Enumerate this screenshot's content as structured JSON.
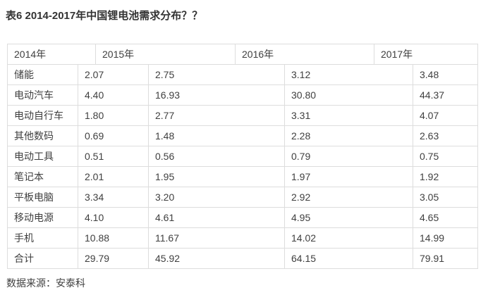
{
  "page": {
    "title": "表6 2014-2017年中国锂电池需求分布？？",
    "source_note": "数据来源：安泰科"
  },
  "table": {
    "columns": [
      "2014年",
      "2015年",
      "2016年",
      "2017年"
    ],
    "rows": [
      {
        "label": "储能",
        "values": [
          "2.07",
          "2.75",
          "3.12",
          "3.48"
        ]
      },
      {
        "label": "电动汽车",
        "values": [
          "4.40",
          "16.93",
          "30.80",
          "44.37"
        ]
      },
      {
        "label": "电动自行车",
        "values": [
          "1.80",
          "2.77",
          "3.31",
          "4.07"
        ]
      },
      {
        "label": "其他数码",
        "values": [
          "0.69",
          "1.48",
          "2.28",
          "2.63"
        ]
      },
      {
        "label": "电动工具",
        "values": [
          "0.51",
          "0.56",
          "0.79",
          "0.75"
        ]
      },
      {
        "label": "笔记本",
        "values": [
          "2.01",
          "1.95",
          "1.97",
          "1.92"
        ]
      },
      {
        "label": "平板电脑",
        "values": [
          "3.34",
          "3.20",
          "2.92",
          "3.05"
        ]
      },
      {
        "label": "移动电源",
        "values": [
          "4.10",
          "4.61",
          "4.95",
          "4.65"
        ]
      },
      {
        "label": "手机",
        "values": [
          "10.88",
          "11.67",
          "14.02",
          "14.99"
        ]
      },
      {
        "label": "合计",
        "values": [
          "29.79",
          "45.92",
          "64.15",
          "79.91"
        ]
      }
    ]
  },
  "chart_data": {
    "type": "table",
    "title": "表6 2014-2017年中国锂电池需求分布",
    "categories": [
      "储能",
      "电动汽车",
      "电动自行车",
      "其他数码",
      "电动工具",
      "笔记本",
      "平板电脑",
      "移动电源",
      "手机",
      "合计"
    ],
    "series": [
      {
        "name": "2014年",
        "values": [
          2.07,
          4.4,
          1.8,
          0.69,
          0.51,
          2.01,
          3.34,
          4.1,
          10.88,
          29.79
        ]
      },
      {
        "name": "2015年",
        "values": [
          2.75,
          16.93,
          2.77,
          1.48,
          0.56,
          1.95,
          3.2,
          4.61,
          11.67,
          45.92
        ]
      },
      {
        "name": "2016年",
        "values": [
          3.12,
          30.8,
          3.31,
          2.28,
          0.79,
          1.97,
          2.92,
          4.95,
          14.02,
          64.15
        ]
      },
      {
        "name": "2017年",
        "values": [
          3.48,
          44.37,
          4.07,
          2.63,
          0.75,
          1.92,
          3.05,
          4.65,
          14.99,
          79.91
        ]
      }
    ],
    "source": "安泰科"
  },
  "colors": {
    "background": "#ffffff",
    "border": "#dddddd",
    "text": "#3f3f3f",
    "title_text": "#333333"
  }
}
